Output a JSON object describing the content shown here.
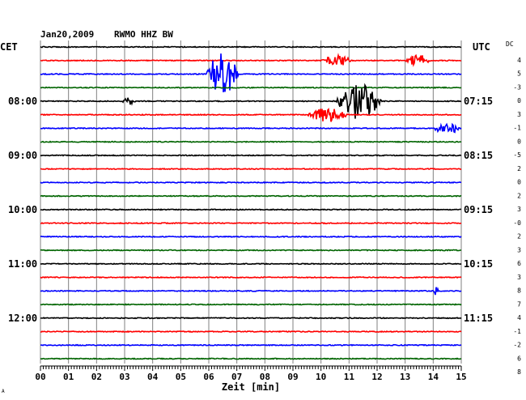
{
  "header": {
    "date": "Jan20,2009",
    "station": "RWMO HHZ BW",
    "left_tz": "CET",
    "right_tz": "UTC",
    "dc_label": "DC"
  },
  "footer": {
    "xlabel": "Zeit [min]",
    "corner_mark": "A"
  },
  "colors": {
    "black": "#000000",
    "red": "#ff0000",
    "blue": "#0000ff",
    "green": "#006400",
    "grid": "#808080"
  },
  "chart_data": {
    "type": "line",
    "xlabel": "Zeit [min]",
    "xlim": [
      0,
      15
    ],
    "x_ticks": [
      "00",
      "01",
      "02",
      "03",
      "04",
      "05",
      "06",
      "07",
      "08",
      "09",
      "10",
      "11",
      "12",
      "13",
      "14",
      "15"
    ],
    "trace_colors": [
      "black",
      "red",
      "blue",
      "green"
    ],
    "left_time_labels": [
      {
        "trace": 4,
        "text": "08:00"
      },
      {
        "trace": 8,
        "text": "09:00"
      },
      {
        "trace": 12,
        "text": "10:00"
      },
      {
        "trace": 16,
        "text": "11:00"
      },
      {
        "trace": 20,
        "text": "12:00"
      }
    ],
    "right_time_labels": [
      {
        "trace": 4,
        "text": "07:15"
      },
      {
        "trace": 8,
        "text": "08:15"
      },
      {
        "trace": 12,
        "text": "09:15"
      },
      {
        "trace": 16,
        "text": "10:15"
      },
      {
        "trace": 20,
        "text": "11:15"
      }
    ],
    "dc_offsets": [
      "4",
      "5",
      "-3",
      "0",
      "3",
      "-1",
      "0",
      "-5",
      "2",
      "0",
      "2",
      "3",
      "-0",
      "2",
      "3",
      "6",
      "3",
      "8",
      "7",
      "4",
      "-1",
      "-2",
      "6",
      "8"
    ],
    "events": [
      {
        "trace": 1,
        "start_min": 10.0,
        "end_min": 11.1,
        "amplitude": 0.75
      },
      {
        "trace": 1,
        "start_min": 13.0,
        "end_min": 13.9,
        "amplitude": 0.75
      },
      {
        "trace": 2,
        "start_min": 5.9,
        "end_min": 7.1,
        "amplitude": 3.0
      },
      {
        "trace": 4,
        "start_min": 2.9,
        "end_min": 3.4,
        "amplitude": 0.45
      },
      {
        "trace": 4,
        "start_min": 10.5,
        "end_min": 12.2,
        "amplitude": 2.4
      },
      {
        "trace": 5,
        "start_min": 9.5,
        "end_min": 11.0,
        "amplitude": 0.9
      },
      {
        "trace": 6,
        "start_min": 14.0,
        "end_min": 15.0,
        "amplitude": 0.75
      },
      {
        "trace": 18,
        "start_min": 14.0,
        "end_min": 14.2,
        "amplitude": 0.5
      }
    ]
  }
}
